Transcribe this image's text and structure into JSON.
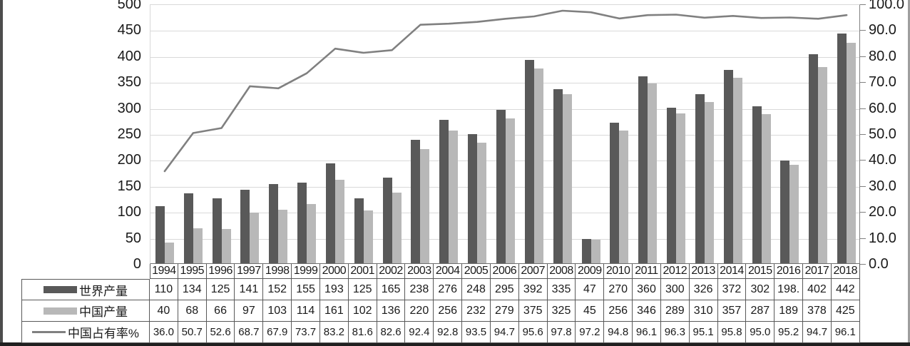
{
  "chart_data": {
    "type": "bar",
    "note": "grouped bar chart (left axis) with line overlay (right axis), data table with legend below",
    "categories": [
      "1994",
      "1995",
      "1996",
      "1997",
      "1998",
      "1999",
      "2000",
      "2001",
      "2002",
      "2003",
      "2004",
      "2005",
      "2006",
      "2007",
      "2008",
      "2009",
      "2010",
      "2011",
      "2012",
      "2013",
      "2014",
      "2015",
      "2016",
      "2017",
      "2018"
    ],
    "series": [
      {
        "name": "世界产量",
        "type": "bar",
        "color": "#595959",
        "axis": "left",
        "values": [
          "110",
          "134",
          "125",
          "141",
          "152",
          "155",
          "193",
          "125",
          "165",
          "238",
          "276",
          "248",
          "295",
          "392",
          "335",
          "47",
          "270",
          "360",
          "300",
          "326",
          "372",
          "302",
          "198.",
          "402",
          "442"
        ]
      },
      {
        "name": "中国产量",
        "type": "bar",
        "color": "#b8b8b8",
        "axis": "left",
        "values": [
          "40",
          "68",
          "66",
          "97",
          "103",
          "114",
          "161",
          "102",
          "136",
          "220",
          "256",
          "232",
          "279",
          "375",
          "325",
          "45",
          "256",
          "346",
          "289",
          "310",
          "357",
          "287",
          "189",
          "378",
          "425"
        ]
      },
      {
        "name": "中国占有率%",
        "type": "line",
        "color": "#808080",
        "axis": "right",
        "values": [
          "36.0",
          "50.7",
          "52.6",
          "68.7",
          "67.9",
          "73.7",
          "83.2",
          "81.6",
          "82.6",
          "92.4",
          "92.8",
          "93.5",
          "94.7",
          "95.6",
          "97.8",
          "97.2",
          "94.8",
          "96.1",
          "96.3",
          "95.1",
          "95.8",
          "95.0",
          "95.2",
          "94.7",
          "96.1"
        ]
      }
    ],
    "left_axis": {
      "min": 0,
      "max": 500,
      "step": 50,
      "tick_labels": [
        "500",
        "450",
        "400",
        "350",
        "300",
        "250",
        "200",
        "150",
        "100",
        "50",
        "0"
      ]
    },
    "right_axis": {
      "min": 0,
      "max": 100,
      "step": 10,
      "tick_labels": [
        "100.0",
        "90.0",
        "80.0",
        "70.0",
        "60.0",
        "50.0",
        "40.0",
        "30.0",
        "20.0",
        "10.0",
        "0.0"
      ]
    },
    "grid": true,
    "legend_position": "table-rows-left",
    "colors": {
      "gridline": "#d9d9d9",
      "axis_line": "#6e6e6e",
      "table_border": "#595959",
      "text": "#1a1a1a"
    }
  }
}
